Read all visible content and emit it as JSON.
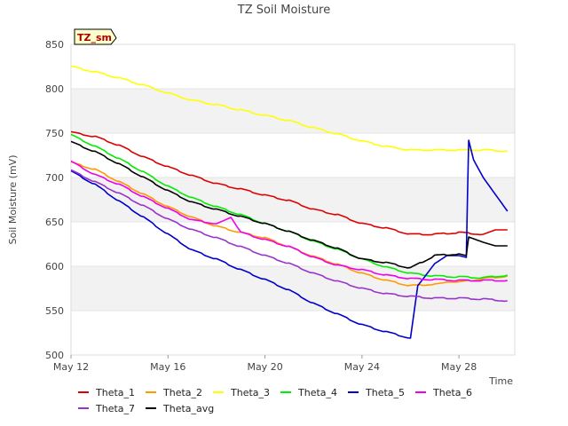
{
  "chart_data": {
    "type": "line",
    "title": "TZ Soil Moisture",
    "badge": "TZ_sm",
    "xlabel": "Time",
    "ylabel": "Soil Moisture (mV)",
    "ylim": [
      500,
      850
    ],
    "xlim": [
      0,
      18.3
    ],
    "yticks": [
      500,
      550,
      600,
      650,
      700,
      750,
      800,
      850
    ],
    "xticks": [
      {
        "day": 0,
        "label": "May 12"
      },
      {
        "day": 4,
        "label": "May 16"
      },
      {
        "day": 8,
        "label": "May 20"
      },
      {
        "day": 12,
        "label": "May 24"
      },
      {
        "day": 16,
        "label": "May 28"
      }
    ],
    "grid": "alternating horizontal bands",
    "legend_position": "bottom",
    "series": [
      {
        "name": "Theta_1",
        "color": "#dd0000",
        "points": [
          [
            0,
            751
          ],
          [
            1,
            746
          ],
          [
            2,
            736
          ],
          [
            3,
            723
          ],
          [
            4,
            712
          ],
          [
            5,
            702
          ],
          [
            6,
            693
          ],
          [
            7,
            687
          ],
          [
            8,
            680
          ],
          [
            9,
            674
          ],
          [
            10,
            664
          ],
          [
            11,
            658
          ],
          [
            12,
            648
          ],
          [
            13,
            643
          ],
          [
            14,
            636
          ],
          [
            15,
            636
          ],
          [
            16,
            638
          ],
          [
            17,
            636
          ],
          [
            17.5,
            641
          ],
          [
            18,
            641
          ]
        ]
      },
      {
        "name": "Theta_2",
        "color": "#ff9900",
        "points": [
          [
            0,
            717
          ],
          [
            1,
            709
          ],
          [
            2,
            695
          ],
          [
            3,
            681
          ],
          [
            4,
            667
          ],
          [
            5,
            655
          ],
          [
            6,
            645
          ],
          [
            7,
            638
          ],
          [
            8,
            632
          ],
          [
            9,
            622
          ],
          [
            10,
            611
          ],
          [
            11,
            602
          ],
          [
            12,
            592
          ],
          [
            13,
            584
          ],
          [
            14,
            578
          ],
          [
            15,
            580
          ],
          [
            15.5,
            582
          ],
          [
            16,
            582
          ],
          [
            17,
            586
          ],
          [
            18,
            589
          ]
        ]
      },
      {
        "name": "Theta_3",
        "color": "#ffff00",
        "points": [
          [
            0,
            825
          ],
          [
            1,
            819
          ],
          [
            2,
            812
          ],
          [
            3,
            804
          ],
          [
            4,
            795
          ],
          [
            5,
            787
          ],
          [
            6,
            782
          ],
          [
            7,
            776
          ],
          [
            8,
            770
          ],
          [
            9,
            764
          ],
          [
            10,
            756
          ],
          [
            11,
            749
          ],
          [
            12,
            741
          ],
          [
            13,
            735
          ],
          [
            14,
            731
          ],
          [
            15,
            731
          ],
          [
            16,
            731
          ],
          [
            17,
            731
          ],
          [
            18,
            730
          ]
        ]
      },
      {
        "name": "Theta_4",
        "color": "#00ee00",
        "points": [
          [
            0,
            748
          ],
          [
            1,
            735
          ],
          [
            2,
            721
          ],
          [
            3,
            706
          ],
          [
            4,
            690
          ],
          [
            5,
            677
          ],
          [
            6,
            667
          ],
          [
            7,
            658
          ],
          [
            8,
            648
          ],
          [
            9,
            639
          ],
          [
            10,
            628
          ],
          [
            11,
            619
          ],
          [
            12,
            608
          ],
          [
            13,
            599
          ],
          [
            14,
            592
          ],
          [
            15,
            589
          ],
          [
            16,
            588
          ],
          [
            17,
            587
          ],
          [
            18,
            590
          ]
        ]
      },
      {
        "name": "Theta_5",
        "color": "#0000cc",
        "points": [
          [
            0,
            707
          ],
          [
            1,
            692
          ],
          [
            2,
            673
          ],
          [
            3,
            655
          ],
          [
            4,
            636
          ],
          [
            5,
            618
          ],
          [
            6,
            608
          ],
          [
            7,
            596
          ],
          [
            8,
            585
          ],
          [
            9,
            573
          ],
          [
            10,
            558
          ],
          [
            11,
            546
          ],
          [
            12,
            534
          ],
          [
            13,
            526
          ],
          [
            14,
            519
          ],
          [
            14.3,
            578
          ],
          [
            15,
            603
          ],
          [
            15.5,
            612
          ],
          [
            16,
            612
          ],
          [
            16.3,
            610
          ],
          [
            16.4,
            742
          ],
          [
            16.6,
            720
          ],
          [
            17,
            700
          ],
          [
            17.5,
            681
          ],
          [
            18,
            662
          ]
        ]
      },
      {
        "name": "Theta_6",
        "color": "#ee00ee",
        "points": [
          [
            0,
            718
          ],
          [
            1,
            703
          ],
          [
            2,
            692
          ],
          [
            3,
            678
          ],
          [
            4,
            665
          ],
          [
            5,
            652
          ],
          [
            6,
            648
          ],
          [
            6.6,
            655
          ],
          [
            7,
            638
          ],
          [
            8,
            630
          ],
          [
            9,
            622
          ],
          [
            10,
            610
          ],
          [
            11,
            601
          ],
          [
            12,
            596
          ],
          [
            13,
            590
          ],
          [
            14,
            586
          ],
          [
            15,
            585
          ],
          [
            16,
            584
          ],
          [
            17,
            584
          ],
          [
            18,
            584
          ]
        ]
      },
      {
        "name": "Theta_7",
        "color": "#9933cc",
        "points": [
          [
            0,
            708
          ],
          [
            1,
            695
          ],
          [
            2,
            682
          ],
          [
            3,
            668
          ],
          [
            4,
            653
          ],
          [
            5,
            641
          ],
          [
            6,
            632
          ],
          [
            7,
            622
          ],
          [
            8,
            612
          ],
          [
            9,
            603
          ],
          [
            10,
            592
          ],
          [
            11,
            583
          ],
          [
            12,
            575
          ],
          [
            13,
            569
          ],
          [
            14,
            566
          ],
          [
            15,
            564
          ],
          [
            16,
            564
          ],
          [
            17,
            563
          ],
          [
            18,
            561
          ]
        ]
      },
      {
        "name": "Theta_avg",
        "color": "#000000",
        "points": [
          [
            0,
            740
          ],
          [
            1,
            729
          ],
          [
            2,
            715
          ],
          [
            3,
            700
          ],
          [
            4,
            685
          ],
          [
            5,
            672
          ],
          [
            6,
            664
          ],
          [
            7,
            656
          ],
          [
            8,
            648
          ],
          [
            9,
            639
          ],
          [
            10,
            629
          ],
          [
            11,
            620
          ],
          [
            12,
            608
          ],
          [
            13,
            604
          ],
          [
            14,
            598
          ],
          [
            15,
            612
          ],
          [
            16,
            614
          ],
          [
            16.3,
            612
          ],
          [
            16.4,
            633
          ],
          [
            17,
            627
          ],
          [
            17.5,
            623
          ],
          [
            18,
            623
          ]
        ]
      }
    ]
  }
}
